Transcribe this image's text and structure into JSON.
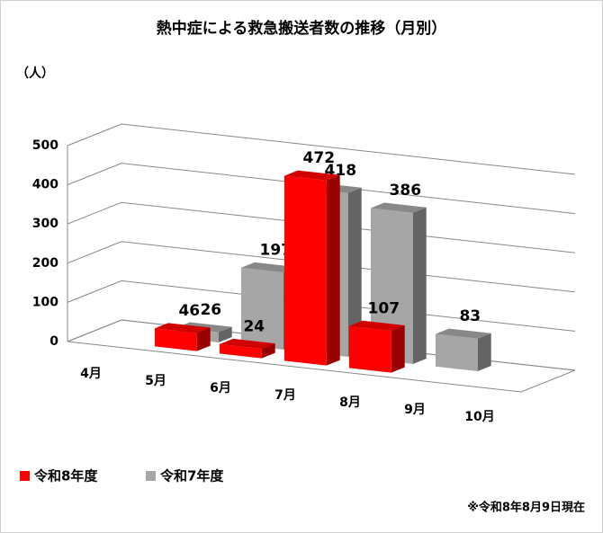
{
  "chart_data": {
    "type": "bar3d",
    "title": "熱中症による救急搬送者数の推移（月別）",
    "y_label": "（人）",
    "categories": [
      "4月",
      "5月",
      "6月",
      "7月",
      "8月",
      "9月",
      "10月"
    ],
    "series": [
      {
        "name": "令和8年度",
        "color": "#ff0000",
        "values": [
          null,
          46,
          24,
          472,
          107,
          null,
          null
        ]
      },
      {
        "name": "令和7年度",
        "color": "#a6a6a6",
        "values": [
          null,
          26,
          197,
          418,
          386,
          83,
          null
        ]
      }
    ],
    "ylim": [
      0,
      500
    ],
    "yticks": [
      0,
      100,
      200,
      300,
      400,
      500
    ],
    "grid": true,
    "legend": "bottom-left",
    "note": "※令和8年8月9日現在"
  }
}
